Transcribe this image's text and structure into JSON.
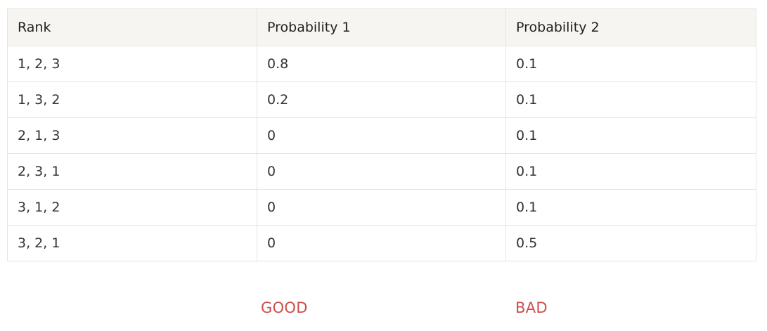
{
  "table": {
    "headers": [
      "Rank",
      "Probability 1",
      "Probability 2"
    ],
    "rows": [
      [
        "1, 2, 3",
        "0.8",
        "0.1"
      ],
      [
        "1, 3, 2",
        "0.2",
        "0.1"
      ],
      [
        "2, 1, 3",
        "0",
        "0.1"
      ],
      [
        "2, 3, 1",
        "0",
        "0.1"
      ],
      [
        "3, 1, 2",
        "0",
        "0.1"
      ],
      [
        "3, 2, 1",
        "0",
        "0.5"
      ]
    ]
  },
  "labels": {
    "good": "GOOD",
    "bad": "BAD"
  },
  "colors": {
    "header_bg": "#f6f5f1",
    "border": "#e6e4df",
    "label_red": "#cc4f4c"
  }
}
